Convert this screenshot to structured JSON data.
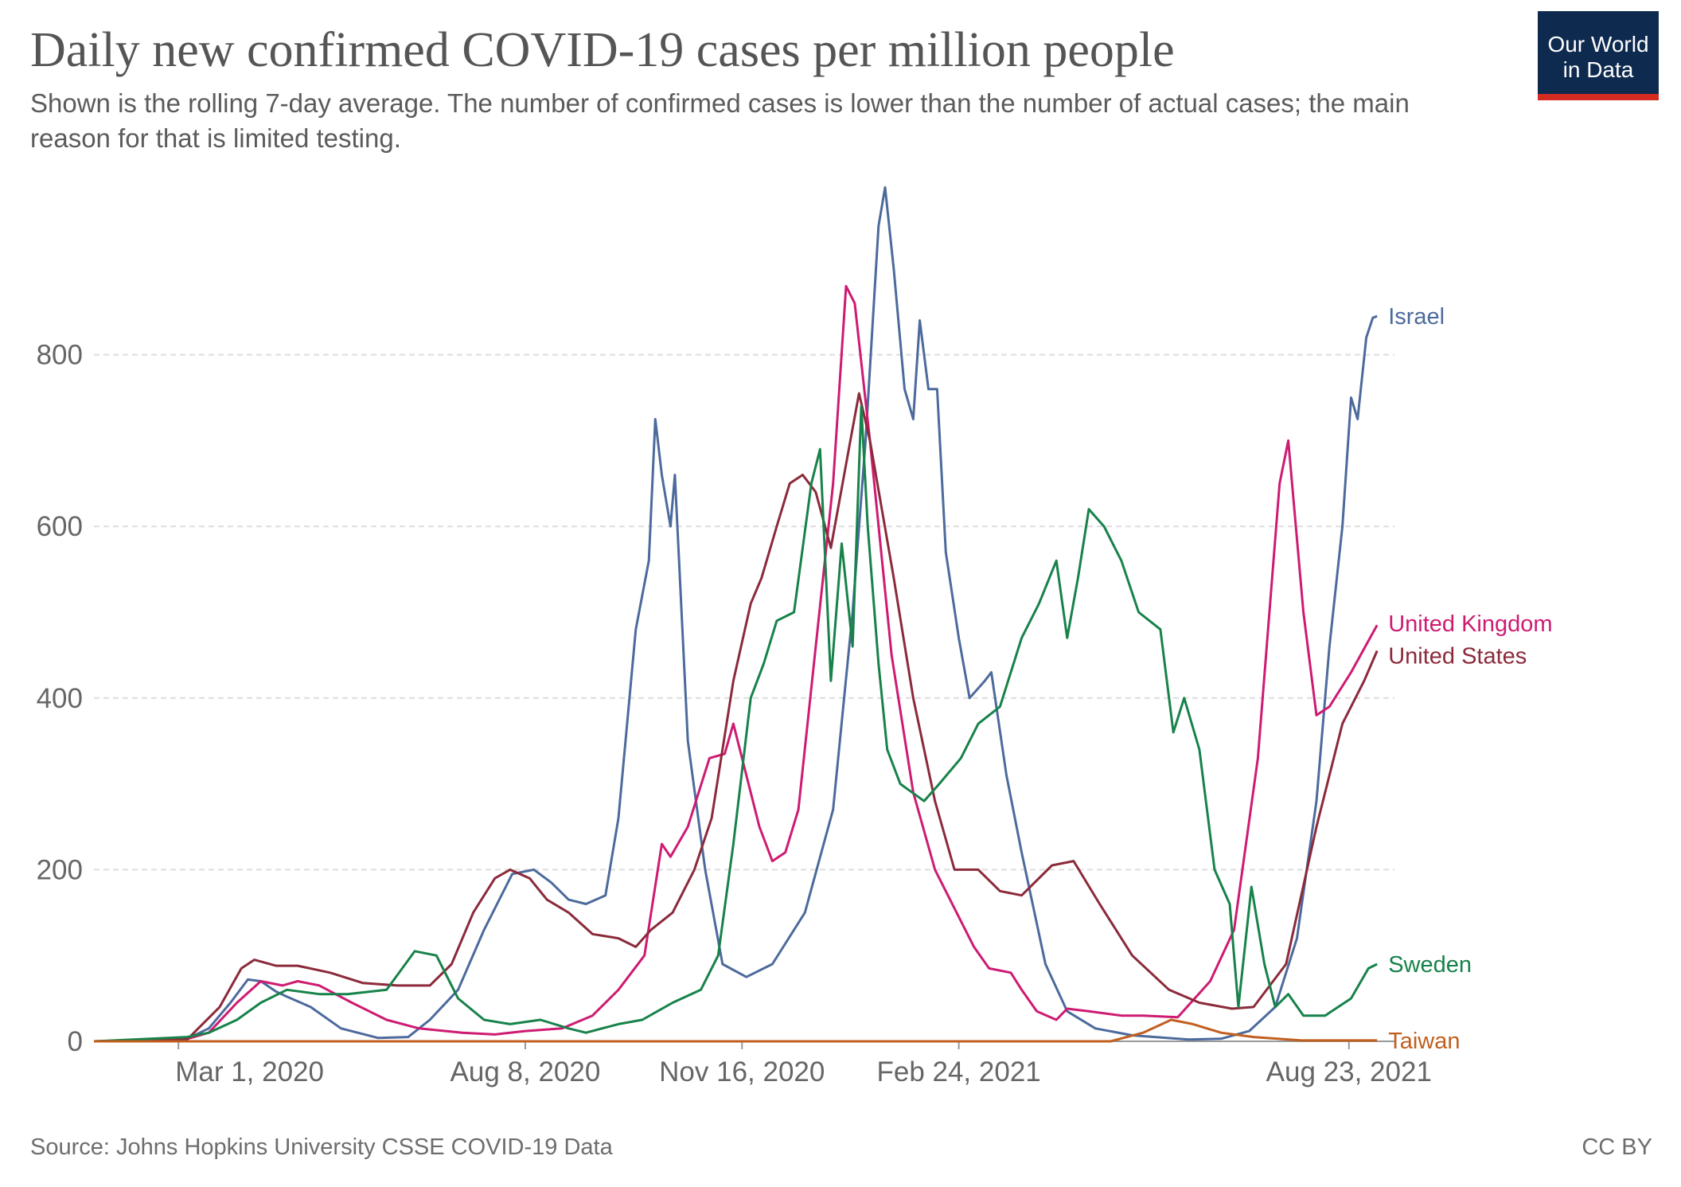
{
  "header": {
    "title": "Daily new confirmed COVID-19 cases per million people",
    "subtitle": "Shown is the rolling 7-day average. The number of confirmed cases is lower than the number of actual cases; the main reason for that is limited testing."
  },
  "logo": {
    "line1": "Our World",
    "line2": "in Data",
    "bg_color": "#0e2a4f",
    "bar_color": "#d42b21"
  },
  "footer": {
    "source": "Source: Johns Hopkins University CSSE COVID-19 Data",
    "license": "CC BY"
  },
  "chart_data": {
    "type": "line",
    "title": "Daily new confirmed COVID-19 cases per million people",
    "xlabel": "",
    "ylabel": "",
    "x_range": [
      "2020-01-22",
      "2021-09-13"
    ],
    "ylim": [
      0,
      1000
    ],
    "grid": "horizontal dashed",
    "legend": "inline labels at right end of lines",
    "x_ticks": [
      "2020-03-01",
      "2020-08-08",
      "2020-11-16",
      "2021-02-24",
      "2021-08-23"
    ],
    "x_tick_labels": [
      "Mar 1, 2020",
      "Aug 8, 2020",
      "Nov 16, 2020",
      "Feb 24, 2021",
      "Aug 23, 2021"
    ],
    "y_ticks": [
      0,
      200,
      400,
      600,
      800
    ],
    "y_tick_labels": [
      "0",
      "200",
      "400",
      "600",
      "800"
    ],
    "series": [
      {
        "name": "Israel",
        "color": "#4c6a9c",
        "points": [
          [
            "2020-01-22",
            0
          ],
          [
            "2020-02-25",
            0
          ],
          [
            "2020-03-05",
            3
          ],
          [
            "2020-03-15",
            15
          ],
          [
            "2020-03-25",
            45
          ],
          [
            "2020-04-02",
            72
          ],
          [
            "2020-04-08",
            70
          ],
          [
            "2020-04-15",
            58
          ],
          [
            "2020-04-20",
            52
          ],
          [
            "2020-05-01",
            40
          ],
          [
            "2020-05-15",
            15
          ],
          [
            "2020-06-01",
            4
          ],
          [
            "2020-06-15",
            5
          ],
          [
            "2020-06-25",
            25
          ],
          [
            "2020-07-08",
            60
          ],
          [
            "2020-07-20",
            130
          ],
          [
            "2020-08-02",
            195
          ],
          [
            "2020-08-12",
            200
          ],
          [
            "2020-08-20",
            185
          ],
          [
            "2020-08-28",
            165
          ],
          [
            "2020-09-05",
            160
          ],
          [
            "2020-09-14",
            170
          ],
          [
            "2020-09-20",
            260
          ],
          [
            "2020-09-28",
            480
          ],
          [
            "2020-10-04",
            560
          ],
          [
            "2020-10-07",
            725
          ],
          [
            "2020-10-10",
            660
          ],
          [
            "2020-10-14",
            600
          ],
          [
            "2020-10-16",
            660
          ],
          [
            "2020-10-22",
            350
          ],
          [
            "2020-10-30",
            200
          ],
          [
            "2020-11-07",
            90
          ],
          [
            "2020-11-18",
            75
          ],
          [
            "2020-11-30",
            90
          ],
          [
            "2020-12-15",
            150
          ],
          [
            "2020-12-28",
            270
          ],
          [
            "2021-01-06",
            500
          ],
          [
            "2021-01-12",
            700
          ],
          [
            "2021-01-18",
            950
          ],
          [
            "2021-01-21",
            995
          ],
          [
            "2021-01-25",
            900
          ],
          [
            "2021-01-30",
            760
          ],
          [
            "2021-02-03",
            725
          ],
          [
            "2021-02-06",
            840
          ],
          [
            "2021-02-10",
            760
          ],
          [
            "2021-02-14",
            760
          ],
          [
            "2021-02-18",
            570
          ],
          [
            "2021-02-24",
            470
          ],
          [
            "2021-03-01",
            400
          ],
          [
            "2021-03-08",
            420
          ],
          [
            "2021-03-11",
            430
          ],
          [
            "2021-03-18",
            310
          ],
          [
            "2021-03-25",
            220
          ],
          [
            "2021-04-05",
            90
          ],
          [
            "2021-04-15",
            35
          ],
          [
            "2021-04-28",
            15
          ],
          [
            "2021-05-15",
            7
          ],
          [
            "2021-06-10",
            2
          ],
          [
            "2021-06-25",
            3
          ],
          [
            "2021-07-08",
            12
          ],
          [
            "2021-07-20",
            40
          ],
          [
            "2021-07-30",
            120
          ],
          [
            "2021-08-08",
            280
          ],
          [
            "2021-08-14",
            460
          ],
          [
            "2021-08-20",
            600
          ],
          [
            "2021-08-24",
            750
          ],
          [
            "2021-08-27",
            725
          ],
          [
            "2021-08-31",
            820
          ],
          [
            "2021-09-03",
            843
          ],
          [
            "2021-09-05",
            845
          ]
        ]
      },
      {
        "name": "United Kingdom",
        "color": "#ce1b72",
        "points": [
          [
            "2020-01-22",
            0
          ],
          [
            "2020-03-01",
            0
          ],
          [
            "2020-03-15",
            10
          ],
          [
            "2020-03-28",
            45
          ],
          [
            "2020-04-08",
            70
          ],
          [
            "2020-04-18",
            65
          ],
          [
            "2020-04-25",
            70
          ],
          [
            "2020-05-05",
            65
          ],
          [
            "2020-05-20",
            45
          ],
          [
            "2020-06-05",
            25
          ],
          [
            "2020-06-20",
            15
          ],
          [
            "2020-07-10",
            10
          ],
          [
            "2020-07-25",
            8
          ],
          [
            "2020-08-08",
            12
          ],
          [
            "2020-08-25",
            15
          ],
          [
            "2020-09-08",
            30
          ],
          [
            "2020-09-20",
            60
          ],
          [
            "2020-10-02",
            100
          ],
          [
            "2020-10-10",
            230
          ],
          [
            "2020-10-14",
            215
          ],
          [
            "2020-10-22",
            250
          ],
          [
            "2020-11-01",
            330
          ],
          [
            "2020-11-08",
            335
          ],
          [
            "2020-11-12",
            370
          ],
          [
            "2020-11-17",
            320
          ],
          [
            "2020-11-24",
            250
          ],
          [
            "2020-11-30",
            210
          ],
          [
            "2020-12-06",
            220
          ],
          [
            "2020-12-12",
            270
          ],
          [
            "2020-12-20",
            460
          ],
          [
            "2020-12-28",
            650
          ],
          [
            "2021-01-03",
            880
          ],
          [
            "2021-01-07",
            860
          ],
          [
            "2021-01-14",
            700
          ],
          [
            "2021-01-24",
            450
          ],
          [
            "2021-02-03",
            290
          ],
          [
            "2021-02-13",
            200
          ],
          [
            "2021-02-24",
            145
          ],
          [
            "2021-03-03",
            110
          ],
          [
            "2021-03-10",
            85
          ],
          [
            "2021-03-20",
            80
          ],
          [
            "2021-03-25",
            60
          ],
          [
            "2021-04-01",
            35
          ],
          [
            "2021-04-10",
            25
          ],
          [
            "2021-04-15",
            38
          ],
          [
            "2021-04-25",
            35
          ],
          [
            "2021-05-10",
            30
          ],
          [
            "2021-05-20",
            30
          ],
          [
            "2021-06-05",
            28
          ],
          [
            "2021-06-20",
            70
          ],
          [
            "2021-07-01",
            130
          ],
          [
            "2021-07-12",
            330
          ],
          [
            "2021-07-22",
            650
          ],
          [
            "2021-07-26",
            700
          ],
          [
            "2021-08-02",
            500
          ],
          [
            "2021-08-08",
            380
          ],
          [
            "2021-08-14",
            390
          ],
          [
            "2021-08-24",
            430
          ],
          [
            "2021-09-05",
            485
          ]
        ]
      },
      {
        "name": "United States",
        "color": "#8b2a3a",
        "points": [
          [
            "2020-01-22",
            0
          ],
          [
            "2020-03-05",
            2
          ],
          [
            "2020-03-20",
            40
          ],
          [
            "2020-03-30",
            85
          ],
          [
            "2020-04-05",
            95
          ],
          [
            "2020-04-15",
            88
          ],
          [
            "2020-04-25",
            88
          ],
          [
            "2020-05-10",
            80
          ],
          [
            "2020-05-25",
            68
          ],
          [
            "2020-06-10",
            65
          ],
          [
            "2020-06-25",
            65
          ],
          [
            "2020-07-05",
            90
          ],
          [
            "2020-07-15",
            150
          ],
          [
            "2020-07-25",
            190
          ],
          [
            "2020-08-01",
            200
          ],
          [
            "2020-08-10",
            190
          ],
          [
            "2020-08-18",
            165
          ],
          [
            "2020-08-28",
            150
          ],
          [
            "2020-09-08",
            125
          ],
          [
            "2020-09-20",
            120
          ],
          [
            "2020-09-28",
            110
          ],
          [
            "2020-10-05",
            130
          ],
          [
            "2020-10-15",
            150
          ],
          [
            "2020-10-25",
            200
          ],
          [
            "2020-11-02",
            260
          ],
          [
            "2020-11-12",
            420
          ],
          [
            "2020-11-20",
            510
          ],
          [
            "2020-11-25",
            540
          ],
          [
            "2020-12-02",
            600
          ],
          [
            "2020-12-08",
            650
          ],
          [
            "2020-12-14",
            660
          ],
          [
            "2020-12-20",
            640
          ],
          [
            "2020-12-27",
            575
          ],
          [
            "2021-01-05",
            700
          ],
          [
            "2021-01-09",
            755
          ],
          [
            "2021-01-14",
            700
          ],
          [
            "2021-01-25",
            540
          ],
          [
            "2021-02-03",
            400
          ],
          [
            "2021-02-13",
            280
          ],
          [
            "2021-02-22",
            200
          ],
          [
            "2021-03-05",
            200
          ],
          [
            "2021-03-15",
            175
          ],
          [
            "2021-03-25",
            170
          ],
          [
            "2021-04-08",
            205
          ],
          [
            "2021-04-18",
            210
          ],
          [
            "2021-04-30",
            160
          ],
          [
            "2021-05-15",
            100
          ],
          [
            "2021-06-01",
            60
          ],
          [
            "2021-06-15",
            45
          ],
          [
            "2021-06-30",
            38
          ],
          [
            "2021-07-10",
            40
          ],
          [
            "2021-07-25",
            90
          ],
          [
            "2021-08-08",
            250
          ],
          [
            "2021-08-20",
            370
          ],
          [
            "2021-08-30",
            420
          ],
          [
            "2021-09-05",
            455
          ]
        ]
      },
      {
        "name": "Sweden",
        "color": "#17824a",
        "points": [
          [
            "2020-01-22",
            0
          ],
          [
            "2020-03-05",
            5
          ],
          [
            "2020-03-15",
            10
          ],
          [
            "2020-03-28",
            25
          ],
          [
            "2020-04-08",
            45
          ],
          [
            "2020-04-20",
            60
          ],
          [
            "2020-05-05",
            55
          ],
          [
            "2020-05-18",
            55
          ],
          [
            "2020-06-05",
            60
          ],
          [
            "2020-06-18",
            105
          ],
          [
            "2020-06-28",
            100
          ],
          [
            "2020-07-08",
            50
          ],
          [
            "2020-07-20",
            25
          ],
          [
            "2020-08-01",
            20
          ],
          [
            "2020-08-15",
            25
          ],
          [
            "2020-08-28",
            15
          ],
          [
            "2020-09-05",
            10
          ],
          [
            "2020-09-20",
            20
          ],
          [
            "2020-10-01",
            25
          ],
          [
            "2020-10-15",
            45
          ],
          [
            "2020-10-28",
            60
          ],
          [
            "2020-11-05",
            100
          ],
          [
            "2020-11-12",
            230
          ],
          [
            "2020-11-20",
            400
          ],
          [
            "2020-11-26",
            440
          ],
          [
            "2020-12-02",
            490
          ],
          [
            "2020-12-10",
            500
          ],
          [
            "2020-12-18",
            650
          ],
          [
            "2020-12-22",
            690
          ],
          [
            "2020-12-27",
            420
          ],
          [
            "2021-01-01",
            580
          ],
          [
            "2021-01-06",
            460
          ],
          [
            "2021-01-10",
            740
          ],
          [
            "2021-01-13",
            600
          ],
          [
            "2021-01-18",
            440
          ],
          [
            "2021-01-22",
            340
          ],
          [
            "2021-01-28",
            300
          ],
          [
            "2021-02-08",
            280
          ],
          [
            "2021-02-15",
            300
          ],
          [
            "2021-02-25",
            330
          ],
          [
            "2021-03-05",
            370
          ],
          [
            "2021-03-15",
            390
          ],
          [
            "2021-03-25",
            470
          ],
          [
            "2021-04-02",
            510
          ],
          [
            "2021-04-10",
            560
          ],
          [
            "2021-04-15",
            470
          ],
          [
            "2021-04-20",
            540
          ],
          [
            "2021-04-25",
            620
          ],
          [
            "2021-05-02",
            600
          ],
          [
            "2021-05-10",
            560
          ],
          [
            "2021-05-18",
            500
          ],
          [
            "2021-05-28",
            480
          ],
          [
            "2021-06-03",
            360
          ],
          [
            "2021-06-08",
            400
          ],
          [
            "2021-06-15",
            340
          ],
          [
            "2021-06-22",
            200
          ],
          [
            "2021-06-29",
            160
          ],
          [
            "2021-07-03",
            40
          ],
          [
            "2021-07-09",
            180
          ],
          [
            "2021-07-15",
            90
          ],
          [
            "2021-07-20",
            40
          ],
          [
            "2021-07-26",
            55
          ],
          [
            "2021-08-02",
            30
          ],
          [
            "2021-08-12",
            30
          ],
          [
            "2021-08-24",
            50
          ],
          [
            "2021-09-01",
            85
          ],
          [
            "2021-09-05",
            90
          ]
        ]
      },
      {
        "name": "Taiwan",
        "color": "#c15f1f",
        "points": [
          [
            "2020-01-22",
            0
          ],
          [
            "2021-05-05",
            0
          ],
          [
            "2021-05-20",
            10
          ],
          [
            "2021-06-02",
            25
          ],
          [
            "2021-06-12",
            20
          ],
          [
            "2021-06-25",
            10
          ],
          [
            "2021-07-10",
            5
          ],
          [
            "2021-08-01",
            1
          ],
          [
            "2021-09-05",
            1
          ]
        ]
      }
    ]
  }
}
